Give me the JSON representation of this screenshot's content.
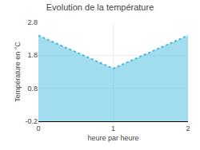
{
  "chart_data": {
    "type": "area",
    "title": "Evolution de la température",
    "xlabel": "heure par heure",
    "ylabel": "Température en °C",
    "x": [
      0,
      1,
      2
    ],
    "values": [
      2.4,
      1.4,
      2.4
    ],
    "color": "#44bbdd",
    "line_style": "dotted",
    "xlim": [
      0,
      2
    ],
    "xticks": [
      0,
      1,
      2
    ],
    "ylim": [
      -0.2,
      2.8
    ],
    "yticks": [
      -0.2,
      0.8,
      1.8,
      2.8
    ],
    "grid": true
  }
}
